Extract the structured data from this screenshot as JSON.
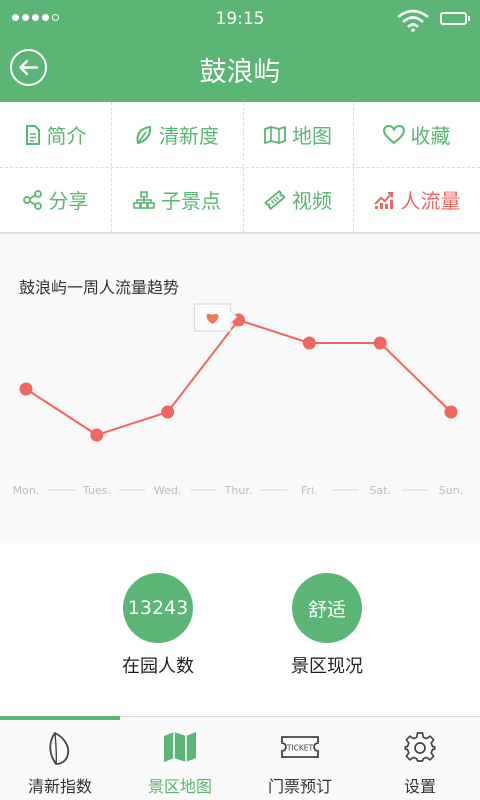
{
  "status_bar": {
    "time": "19:15"
  },
  "header": {
    "title": "鼓浪屿"
  },
  "menu": {
    "items": [
      {
        "label": "简介",
        "icon": "document-icon"
      },
      {
        "label": "清新度",
        "icon": "leaf-icon"
      },
      {
        "label": "地图",
        "icon": "map-icon"
      },
      {
        "label": "收藏",
        "icon": "heart-icon"
      },
      {
        "label": "分享",
        "icon": "share-icon"
      },
      {
        "label": "子景点",
        "icon": "sitemap-icon"
      },
      {
        "label": "视频",
        "icon": "ticket-icon"
      },
      {
        "label": "人流量",
        "icon": "chart-icon",
        "active": true
      }
    ]
  },
  "chart_data": {
    "type": "line",
    "title": "鼓浪屿一周人流量趋势",
    "categories": [
      "Mon.",
      "Tues.",
      "Wed.",
      "Thur.",
      "Fri.",
      "Sat.",
      "Sun."
    ],
    "values": [
      5,
      3,
      4,
      8,
      7,
      7,
      4
    ],
    "ylim": [
      0,
      10
    ],
    "highlight_index": 3,
    "line_color": "#f0675f",
    "grid": false,
    "legend": "none",
    "xlabel": "",
    "ylabel": ""
  },
  "stats": {
    "visitors": {
      "value": "13243",
      "label": "在园人数"
    },
    "condition": {
      "value": "舒适",
      "label": "景区现况"
    }
  },
  "tabs": [
    {
      "label": "清新指数",
      "icon": "leaf-icon"
    },
    {
      "label": "景区地图",
      "icon": "map-icon",
      "active": true
    },
    {
      "label": "门票预订",
      "icon": "ticket-icon",
      "icon_text": "TICKET"
    },
    {
      "label": "设置",
      "icon": "gear-icon"
    }
  ],
  "colors": {
    "primary": "#5bb574",
    "accent": "#f0675f",
    "text": "#333333"
  }
}
